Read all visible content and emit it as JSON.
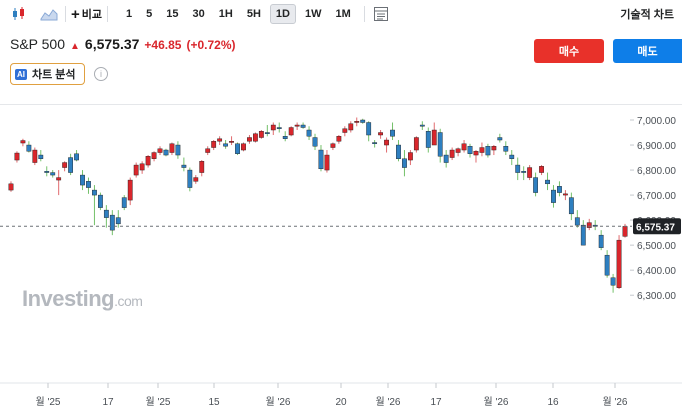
{
  "toolbar": {
    "candle_icon": "candlestick-icon",
    "area_icon": "area-chart-icon",
    "compare_label": "비교",
    "intervals": [
      "1",
      "5",
      "15",
      "30",
      "1H",
      "5H",
      "1D",
      "1W",
      "1M"
    ],
    "active_interval": "1D",
    "indicator_icon": "indicator-panel-icon",
    "technical_label": "기술적 차트"
  },
  "quote": {
    "symbol": "S&P 500",
    "price": "6,575.37",
    "change": "+46.85",
    "change_pct": "(+0.72%)"
  },
  "actions": {
    "buy_label": "매수",
    "sell_label": "매도"
  },
  "ai": {
    "badge": "AI",
    "label": "차트 분석",
    "info_icon": "info-icon"
  },
  "watermark": {
    "brand": "Investing",
    "domain": ".com"
  },
  "colors": {
    "up": "#d9262c",
    "down": "#2e7fc0",
    "buy": "#e8312a",
    "sell": "#0e7ee8"
  },
  "chart_data": {
    "type": "candlestick",
    "y_ticks": [
      "7,000.00",
      "6,900.00",
      "6,800.00",
      "6,700.00",
      "6,600.00",
      "6,500.00",
      "6,400.00",
      "6,300.00"
    ],
    "ylim": [
      6280,
      7030
    ],
    "current_price_label": "6,575.37",
    "current_price": 6575.37,
    "x_ticks": [
      "월 '25",
      "17",
      "월 '25",
      "15",
      "월 '26",
      "20",
      "월 '26",
      "17",
      "월 '26",
      "16",
      "월 '26"
    ],
    "grid": false,
    "candles": [
      [
        6720,
        6755,
        6713,
        6745
      ],
      [
        6840,
        6875,
        6830,
        6868
      ],
      [
        6908,
        6925,
        6895,
        6918
      ],
      [
        6900,
        6915,
        6870,
        6875
      ],
      [
        6830,
        6890,
        6820,
        6880
      ],
      [
        6860,
        6880,
        6835,
        6845
      ],
      [
        6795,
        6815,
        6775,
        6790
      ],
      [
        6790,
        6800,
        6770,
        6780
      ],
      [
        6760,
        6800,
        6700,
        6770
      ],
      [
        6810,
        6835,
        6795,
        6830
      ],
      [
        6850,
        6865,
        6780,
        6790
      ],
      [
        6865,
        6880,
        6835,
        6840
      ],
      [
        6780,
        6800,
        6720,
        6740
      ],
      [
        6755,
        6770,
        6705,
        6730
      ],
      [
        6720,
        6740,
        6580,
        6700
      ],
      [
        6700,
        6710,
        6640,
        6650
      ],
      [
        6640,
        6660,
        6570,
        6610
      ],
      [
        6620,
        6640,
        6540,
        6560
      ],
      [
        6610,
        6640,
        6570,
        6585
      ],
      [
        6690,
        6700,
        6640,
        6650
      ],
      [
        6680,
        6770,
        6660,
        6760
      ],
      [
        6780,
        6830,
        6770,
        6820
      ],
      [
        6800,
        6835,
        6785,
        6825
      ],
      [
        6820,
        6860,
        6810,
        6855
      ],
      [
        6845,
        6875,
        6835,
        6870
      ],
      [
        6870,
        6895,
        6860,
        6885
      ],
      [
        6880,
        6885,
        6855,
        6860
      ],
      [
        6870,
        6910,
        6860,
        6905
      ],
      [
        6900,
        6915,
        6845,
        6860
      ],
      [
        6820,
        6850,
        6795,
        6810
      ],
      [
        6800,
        6810,
        6715,
        6730
      ],
      [
        6755,
        6780,
        6745,
        6770
      ],
      [
        6790,
        6840,
        6775,
        6835
      ],
      [
        6870,
        6895,
        6860,
        6885
      ],
      [
        6890,
        6920,
        6880,
        6915
      ],
      [
        6915,
        6935,
        6900,
        6925
      ],
      [
        6905,
        6920,
        6885,
        6895
      ],
      [
        6915,
        6935,
        6900,
        6915
      ],
      [
        6905,
        6910,
        6860,
        6865
      ],
      [
        6880,
        6910,
        6875,
        6905
      ],
      [
        6915,
        6940,
        6905,
        6930
      ],
      [
        6915,
        6950,
        6910,
        6945
      ],
      [
        6930,
        6960,
        6925,
        6955
      ],
      [
        6950,
        6980,
        6935,
        6945
      ],
      [
        6960,
        6990,
        6940,
        6980
      ],
      [
        6970,
        6990,
        6950,
        6965
      ],
      [
        6935,
        6955,
        6915,
        6925
      ],
      [
        6940,
        6975,
        6935,
        6970
      ],
      [
        6975,
        6990,
        6960,
        6980
      ],
      [
        6980,
        6990,
        6965,
        6970
      ],
      [
        6960,
        6975,
        6920,
        6935
      ],
      [
        6930,
        6945,
        6880,
        6895
      ],
      [
        6880,
        6900,
        6795,
        6805
      ],
      [
        6800,
        6880,
        6790,
        6860
      ],
      [
        6890,
        6910,
        6880,
        6905
      ],
      [
        6915,
        6940,
        6905,
        6935
      ],
      [
        6950,
        6975,
        6935,
        6965
      ],
      [
        6960,
        6995,
        6950,
        6985
      ],
      [
        6990,
        7010,
        6975,
        6995
      ],
      [
        7000,
        7005,
        6985,
        6990
      ],
      [
        6990,
        6995,
        6915,
        6940
      ],
      [
        6910,
        6920,
        6890,
        6905
      ],
      [
        6940,
        6960,
        6925,
        6950
      ],
      [
        6900,
        6930,
        6870,
        6920
      ],
      [
        6960,
        6990,
        6920,
        6935
      ],
      [
        6900,
        6920,
        6835,
        6845
      ],
      [
        6845,
        6880,
        6775,
        6810
      ],
      [
        6840,
        6880,
        6820,
        6870
      ],
      [
        6880,
        6935,
        6870,
        6930
      ],
      [
        6980,
        6995,
        6960,
        6975
      ],
      [
        6955,
        6970,
        6870,
        6890
      ],
      [
        6900,
        6990,
        6900,
        6960
      ],
      [
        6950,
        6965,
        6830,
        6855
      ],
      [
        6860,
        6880,
        6810,
        6830
      ],
      [
        6850,
        6890,
        6840,
        6880
      ],
      [
        6870,
        6890,
        6855,
        6885
      ],
      [
        6880,
        6920,
        6870,
        6905
      ],
      [
        6895,
        6905,
        6850,
        6865
      ],
      [
        6860,
        6880,
        6830,
        6875
      ],
      [
        6870,
        6910,
        6855,
        6890
      ],
      [
        6895,
        6905,
        6850,
        6860
      ],
      [
        6880,
        6900,
        6860,
        6895
      ],
      [
        6930,
        6945,
        6910,
        6920
      ],
      [
        6895,
        6915,
        6860,
        6875
      ],
      [
        6860,
        6880,
        6820,
        6845
      ],
      [
        6820,
        6850,
        6760,
        6790
      ],
      [
        6795,
        6815,
        6760,
        6790
      ],
      [
        6770,
        6820,
        6760,
        6810
      ],
      [
        6770,
        6790,
        6695,
        6710
      ],
      [
        6790,
        6820,
        6780,
        6815
      ],
      [
        6760,
        6790,
        6720,
        6745
      ],
      [
        6720,
        6740,
        6650,
        6670
      ],
      [
        6735,
        6755,
        6695,
        6710
      ],
      [
        6700,
        6720,
        6680,
        6705
      ],
      [
        6690,
        6710,
        6600,
        6625
      ],
      [
        6610,
        6640,
        6570,
        6580
      ],
      [
        6580,
        6600,
        6500,
        6500
      ],
      [
        6570,
        6605,
        6560,
        6590
      ],
      [
        6580,
        6600,
        6560,
        6575
      ],
      [
        6540,
        6560,
        6480,
        6490
      ],
      [
        6460,
        6480,
        6370,
        6380
      ],
      [
        6370,
        6385,
        6310,
        6340
      ],
      [
        6330,
        6540,
        6325,
        6520
      ],
      [
        6535,
        6585,
        6530,
        6575
      ]
    ]
  }
}
